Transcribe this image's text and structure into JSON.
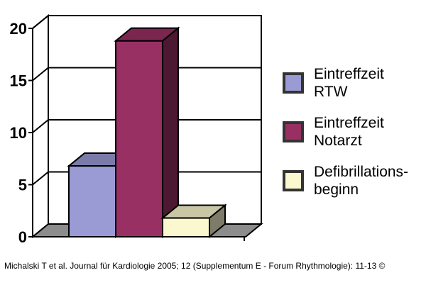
{
  "chart_data": {
    "type": "bar",
    "categories": [
      "Eintreffzeit RTW",
      "Eintreffzeit Notarzt",
      "Defibrillationsbeginn"
    ],
    "values": [
      6.8,
      18.8,
      1.8
    ],
    "ylim": [
      0,
      20
    ],
    "yticks": [
      "0",
      "5",
      "10",
      "15",
      "20"
    ],
    "grid": true,
    "legend_position": "right",
    "colors": [
      "#9a9ad4",
      "#983063",
      "#fbf8cf"
    ]
  },
  "legend": [
    {
      "label_line1": "Eintreffzeit",
      "label_line2": "RTW",
      "color": "#9a9ad4"
    },
    {
      "label_line1": "Eintreffzeit",
      "label_line2": "Notarzt",
      "color": "#983063"
    },
    {
      "label_line1": "Defibrillations-",
      "label_line2": "beginn",
      "color": "#fbf8cf"
    }
  ],
  "caption": "Michalski T et al. Journal für Kardiologie 2005; 12 (Supplementum E - Forum Rhythmologie): 11-13 ©"
}
